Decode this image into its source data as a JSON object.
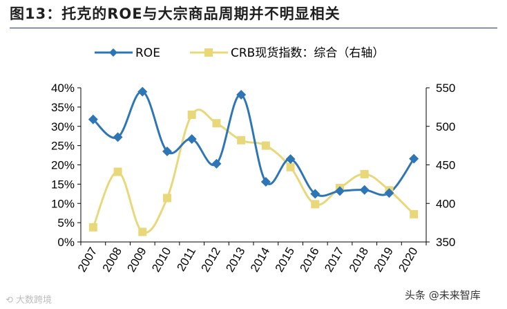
{
  "figure": {
    "title": "图13：托克的ROE与大宗商品周期并不明显相关"
  },
  "watermarks": {
    "left": "大数跨境",
    "right": "头条 @未来智库"
  },
  "colors": {
    "roe": "#2e75b6",
    "crb": "#e8d87a",
    "axis": "#000000"
  },
  "chart_data": {
    "type": "line",
    "title": "图13：托克的ROE与大宗商品周期并不明显相关",
    "x": [
      "2007",
      "2008",
      "2009",
      "2010",
      "2011",
      "2012",
      "2013",
      "2014",
      "2015",
      "2016",
      "2017",
      "2018",
      "2019",
      "2020"
    ],
    "series": [
      {
        "name": "ROE",
        "axis": "left",
        "marker": "diamond",
        "values": [
          31.8,
          27.2,
          39.0,
          23.5,
          26.7,
          20.3,
          38.2,
          15.6,
          21.5,
          12.5,
          13.2,
          13.5,
          12.7,
          21.6
        ]
      },
      {
        "name": "CRB现货指数：综合（右轴）",
        "axis": "right",
        "marker": "square",
        "values": [
          369,
          441,
          363,
          407,
          515,
          504,
          482,
          475,
          447,
          399,
          420,
          438,
          417,
          386
        ]
      }
    ],
    "y_left": {
      "min": 0,
      "max": 40,
      "ticks": [
        "0%",
        "5%",
        "10%",
        "15%",
        "20%",
        "25%",
        "30%",
        "35%",
        "40%"
      ]
    },
    "y_right": {
      "min": 350,
      "max": 550,
      "ticks": [
        "350",
        "400",
        "450",
        "500",
        "550"
      ]
    },
    "legend": {
      "position": "top",
      "entries": [
        "ROE",
        "CRB现货指数：综合（右轴）"
      ]
    },
    "grid": false
  }
}
